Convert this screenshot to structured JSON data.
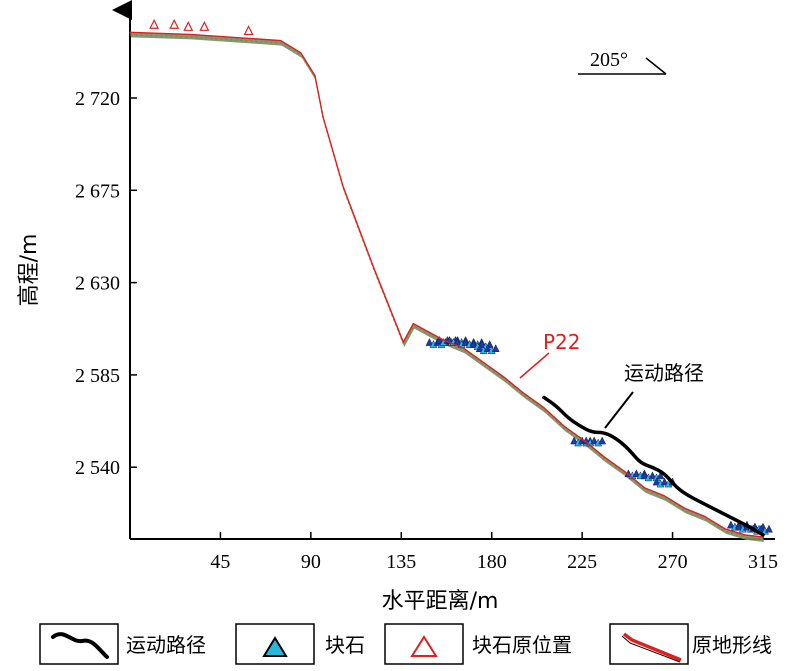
{
  "chart_data": {
    "type": "line",
    "xlabel": "水平距离/m",
    "ylabel": "高程/m",
    "xlim": [
      0,
      325
    ],
    "ylim": [
      2505,
      2770
    ],
    "xticks": [
      45,
      90,
      135,
      180,
      225,
      270,
      315
    ],
    "xtick_labels": [
      "45",
      "90",
      "135",
      "180",
      "225",
      "270",
      "315"
    ],
    "yticks": [
      2540,
      2585,
      2630,
      2675,
      2720
    ],
    "ytick_labels": [
      "2 540",
      "2 585",
      "2 630",
      "2 675",
      "2 720"
    ],
    "direction_label": "205°",
    "point_label": "P22",
    "path_annotation": "运动路径",
    "colors": {
      "terrain": "#e0201f",
      "path": "#000000",
      "boulder_fill": "#25b9da",
      "boulder_dark": "#1f3aa6",
      "original_marker": "#e0201f",
      "point_label": "#e0201f"
    },
    "series": [
      {
        "name": "原地形线",
        "role": "terrain",
        "x": [
          0,
          30,
          60,
          75,
          85,
          92,
          96,
          106,
          121,
          136,
          141,
          156,
          166,
          176,
          186,
          196,
          206,
          216,
          226,
          236,
          246,
          256,
          266,
          276,
          286,
          296,
          306,
          315
        ],
        "y": [
          2752,
          2751,
          2749,
          2748,
          2742,
          2731,
          2711,
          2677,
          2638,
          2601,
          2610,
          2602,
          2598,
          2591,
          2584,
          2576,
          2569,
          2560,
          2553,
          2545,
          2538,
          2530,
          2526,
          2520,
          2516,
          2510,
          2507,
          2506
        ]
      },
      {
        "name": "运动路径",
        "role": "path",
        "x": [
          206,
          212,
          218,
          224,
          230,
          236,
          242,
          248,
          254,
          260,
          266,
          272,
          278,
          284,
          290,
          296,
          302,
          308,
          315
        ],
        "y": [
          2574,
          2570,
          2564,
          2560,
          2557,
          2557,
          2554,
          2549,
          2542,
          2540,
          2537,
          2530,
          2526,
          2523,
          2520,
          2517,
          2514,
          2511,
          2507
        ]
      }
    ],
    "boulders": {
      "name": "块石",
      "x": [
        153,
        158,
        163,
        167,
        171,
        175,
        178,
        225,
        231,
        252,
        260,
        266,
        303,
        307,
        311,
        314
      ],
      "y": [
        2601,
        2602,
        2602,
        2601,
        2601,
        2600,
        2598,
        2553,
        2553,
        2537,
        2536,
        2533,
        2512,
        2511,
        2511,
        2510
      ]
    },
    "original_positions": {
      "name": "块石原位置",
      "x": [
        12,
        22,
        29,
        37,
        59
      ],
      "y": [
        2754,
        2754,
        2753,
        2753,
        2751
      ]
    },
    "legend": [
      {
        "label": "运动路径",
        "symbol": "black-curve"
      },
      {
        "label": "块石",
        "symbol": "cyan-triangle"
      },
      {
        "label": "块石原位置",
        "symbol": "red-open-triangle"
      },
      {
        "label": "原地形线",
        "symbol": "red-line"
      }
    ]
  }
}
